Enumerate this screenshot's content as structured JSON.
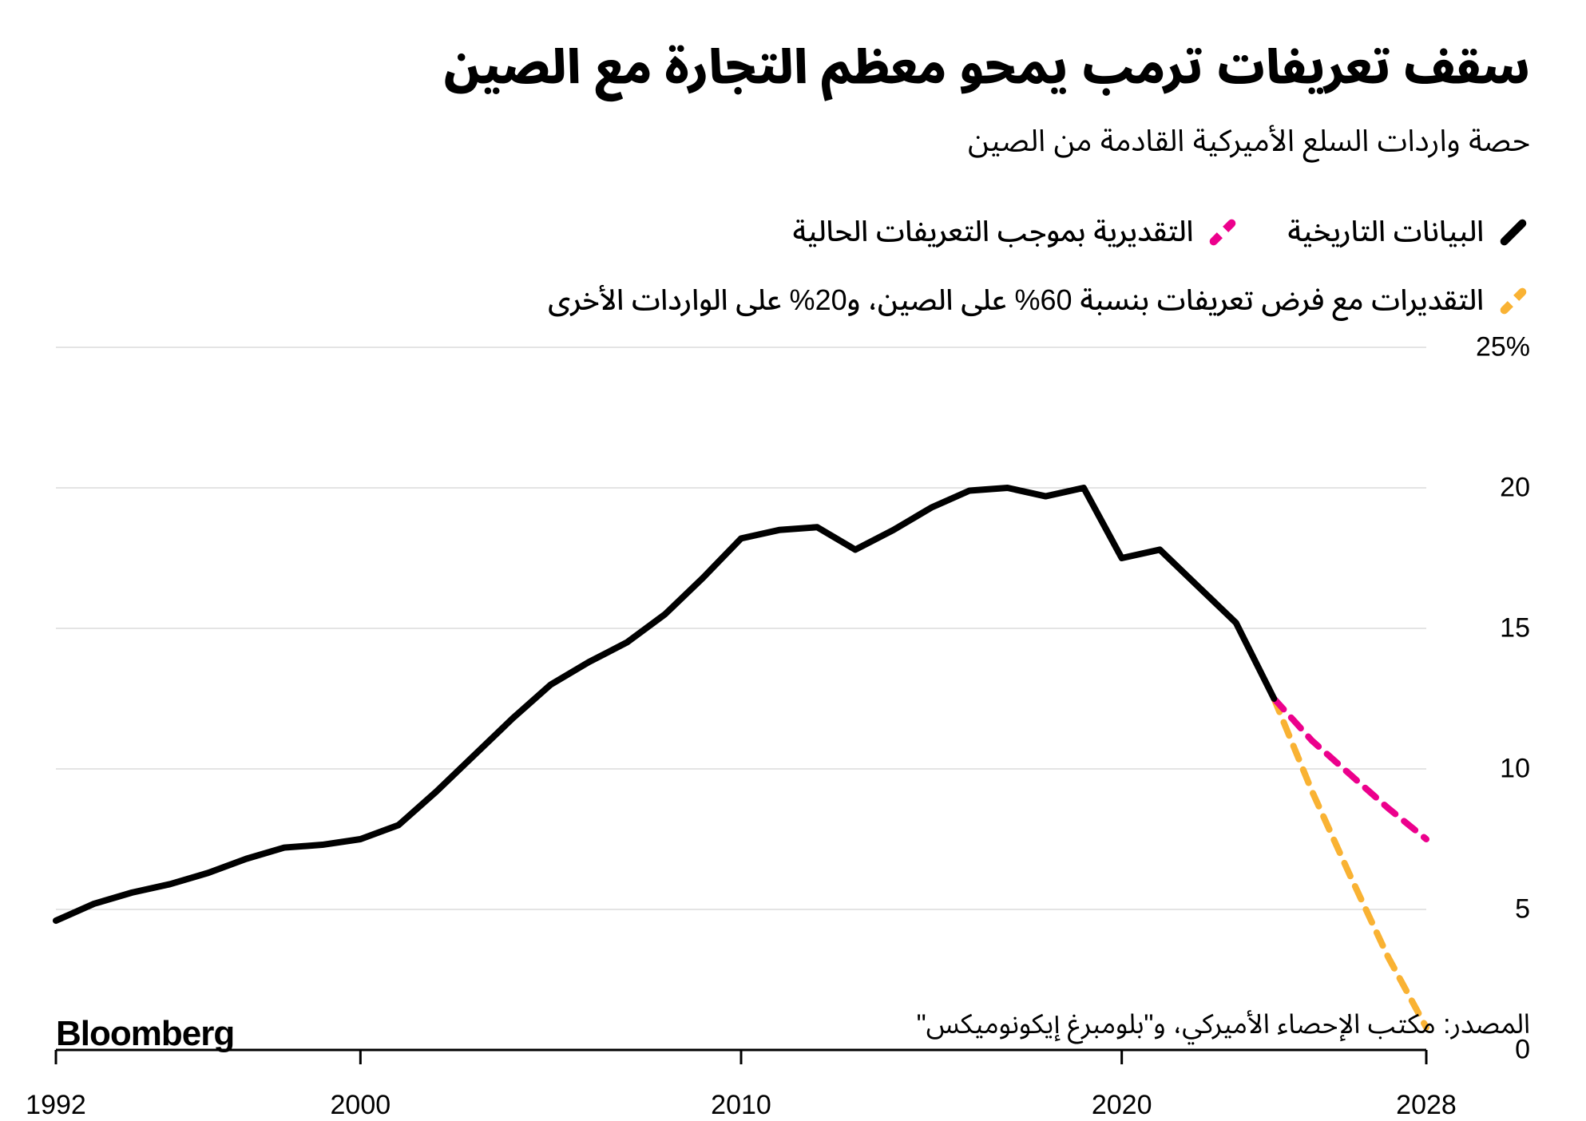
{
  "title": "سقف تعريفات ترمب يمحو معظم التجارة مع الصين",
  "subtitle": "حصة واردات السلع الأميركية القادمة من الصين",
  "legend": {
    "historical": "البيانات التاريخية",
    "estimate_current": "التقديرية بموجب التعريفات الحالية",
    "estimate_tariff": "التقديرات مع فرض تعريفات بنسبة 60% على الصين، و20% على الواردات الأخرى"
  },
  "brand": "Bloomberg",
  "source": "المصدر: مكتب الإحصاء الأميركي، و\"بلومبرغ إيكونوميكس\"",
  "chart": {
    "type": "line",
    "x_domain": [
      1992,
      2028
    ],
    "y_domain": [
      0,
      25
    ],
    "y_ticks": [
      0,
      5,
      10,
      15,
      20,
      25
    ],
    "y_tick_labels": [
      "0",
      "5",
      "10",
      "15",
      "20",
      "25%"
    ],
    "x_ticks": [
      1992,
      2000,
      2010,
      2020,
      2028
    ],
    "x_tick_labels": [
      "1992",
      "2000",
      "2010",
      "2020",
      "2028"
    ],
    "background_color": "#ffffff",
    "grid_color": "#000000",
    "axis_color": "#000000",
    "title_fontsize": 58,
    "subtitle_fontsize": 38,
    "label_fontsize": 34,
    "line_width_main": 8,
    "line_width_proj": 8,
    "dash_pattern": [
      18,
      14
    ],
    "series": {
      "historical": {
        "color": "#000000",
        "style": "solid",
        "data": [
          [
            1992,
            4.6
          ],
          [
            1993,
            5.2
          ],
          [
            1994,
            5.6
          ],
          [
            1995,
            5.9
          ],
          [
            1996,
            6.3
          ],
          [
            1997,
            6.8
          ],
          [
            1998,
            7.2
          ],
          [
            1999,
            7.3
          ],
          [
            2000,
            7.5
          ],
          [
            2001,
            8.0
          ],
          [
            2002,
            9.2
          ],
          [
            2003,
            10.5
          ],
          [
            2004,
            11.8
          ],
          [
            2005,
            13.0
          ],
          [
            2006,
            13.8
          ],
          [
            2007,
            14.5
          ],
          [
            2008,
            15.5
          ],
          [
            2009,
            16.8
          ],
          [
            2010,
            18.2
          ],
          [
            2011,
            18.5
          ],
          [
            2012,
            18.6
          ],
          [
            2013,
            17.8
          ],
          [
            2014,
            18.5
          ],
          [
            2015,
            19.3
          ],
          [
            2016,
            19.9
          ],
          [
            2017,
            20.0
          ],
          [
            2018,
            19.7
          ],
          [
            2019,
            20.0
          ],
          [
            2020,
            17.5
          ],
          [
            2021,
            17.8
          ],
          [
            2022,
            16.5
          ],
          [
            2023,
            15.2
          ],
          [
            2024,
            12.5
          ]
        ]
      },
      "estimate_current": {
        "color": "#ec008c",
        "style": "dashed",
        "data": [
          [
            2024,
            12.5
          ],
          [
            2025,
            11.0
          ],
          [
            2026,
            9.8
          ],
          [
            2027,
            8.6
          ],
          [
            2028,
            7.5
          ]
        ]
      },
      "estimate_tariff": {
        "color": "#f9b233",
        "style": "dashed",
        "data": [
          [
            2024,
            12.5
          ],
          [
            2025,
            9.2
          ],
          [
            2026,
            6.2
          ],
          [
            2027,
            3.3
          ],
          [
            2028,
            0.8
          ]
        ]
      }
    }
  }
}
